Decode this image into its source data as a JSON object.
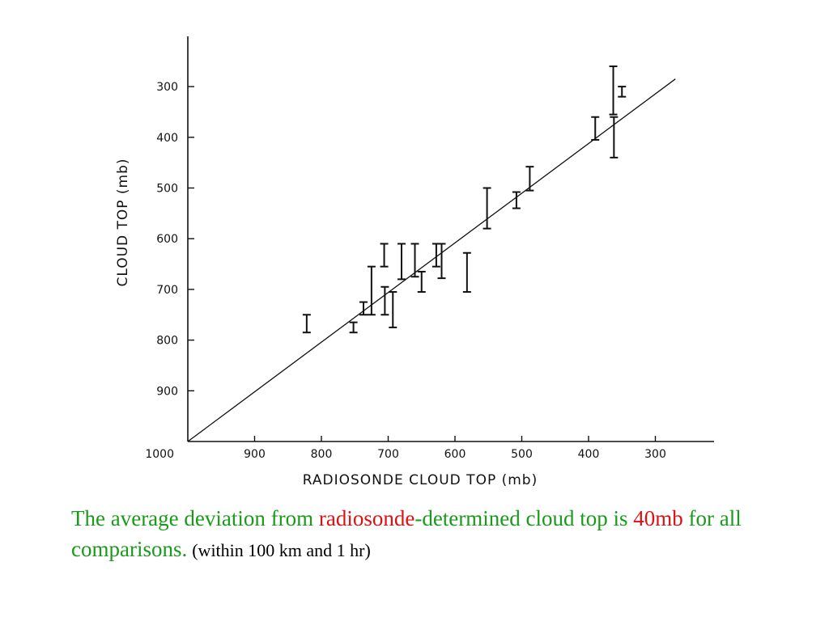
{
  "chart_data": {
    "type": "scatter",
    "xlabel": "RADIOSONDE CLOUD TOP (mb)",
    "ylabel": "CLOUD TOP (mb)",
    "x_ticks": [
      1000,
      900,
      800,
      700,
      600,
      500,
      400,
      300
    ],
    "y_ticks": [
      300,
      400,
      500,
      600,
      700,
      800,
      900
    ],
    "origin_label": "1000",
    "xlim": [
      1000,
      200
    ],
    "ylim": [
      1000,
      200
    ],
    "reference_line": {
      "from": [
        1000,
        1000
      ],
      "to": [
        270,
        285
      ]
    },
    "points": [
      {
        "x": 822,
        "y_low": 750,
        "y_high": 785
      },
      {
        "x": 752,
        "y_low": 765,
        "y_high": 785
      },
      {
        "x": 737,
        "y_low": 725,
        "y_high": 750
      },
      {
        "x": 725,
        "y_low": 655,
        "y_high": 750
      },
      {
        "x": 706,
        "y_low": 610,
        "y_high": 655
      },
      {
        "x": 705,
        "y_low": 695,
        "y_high": 750
      },
      {
        "x": 693,
        "y_low": 705,
        "y_high": 775
      },
      {
        "x": 680,
        "y_low": 610,
        "y_high": 680
      },
      {
        "x": 660,
        "y_low": 610,
        "y_high": 675
      },
      {
        "x": 650,
        "y_low": 665,
        "y_high": 705
      },
      {
        "x": 628,
        "y_low": 610,
        "y_high": 655
      },
      {
        "x": 620,
        "y_low": 610,
        "y_high": 678
      },
      {
        "x": 582,
        "y_low": 628,
        "y_high": 705
      },
      {
        "x": 552,
        "y_low": 500,
        "y_high": 580
      },
      {
        "x": 508,
        "y_low": 508,
        "y_high": 540
      },
      {
        "x": 488,
        "y_low": 458,
        "y_high": 505
      },
      {
        "x": 390,
        "y_low": 360,
        "y_high": 405
      },
      {
        "x": 363,
        "y_low": 260,
        "y_high": 355
      },
      {
        "x": 362,
        "y_low": 360,
        "y_high": 440
      },
      {
        "x": 350,
        "y_low": 300,
        "y_high": 320
      }
    ]
  },
  "caption": {
    "part1": "The average deviation from ",
    "part2": "radiosonde",
    "part3": "-determined cloud top is ",
    "part4": "40mb",
    "part5": " for all comparisons.",
    "note": "(within 100 km and 1 hr)"
  },
  "colors": {
    "green": "#1a9a1a",
    "red": "#dd1111"
  }
}
